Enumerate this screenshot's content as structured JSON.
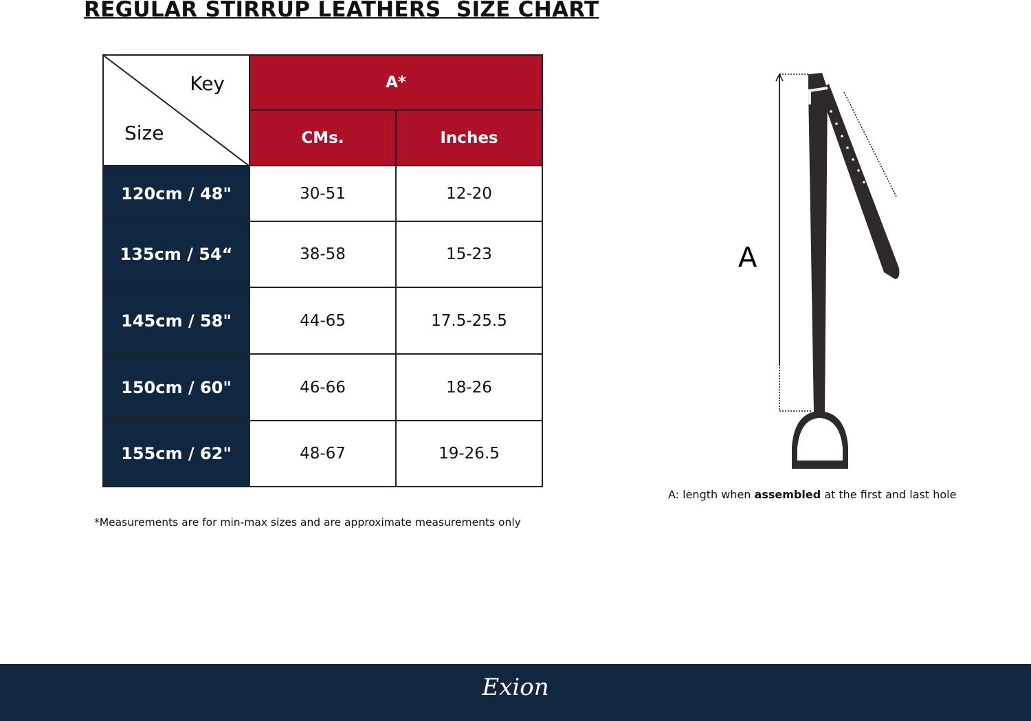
{
  "title": "REGULAR STIRRUP LEATHERS  SIZE CHART",
  "table": {
    "corner_key": "Key",
    "corner_size": "Size",
    "group_header": "A*",
    "columns": [
      "CMs.",
      "Inches"
    ],
    "rows": [
      {
        "size": "120cm / 48\"",
        "cms": "30-51",
        "inches": "12-20"
      },
      {
        "size": "135cm / 54“",
        "cms": "38-58",
        "inches": "15-23"
      },
      {
        "size": "145cm / 58\"",
        "cms": "44-65",
        "inches": "17.5-25.5"
      },
      {
        "size": "150cm / 60\"",
        "cms": "46-66",
        "inches": "18-26"
      },
      {
        "size": "155cm / 62\"",
        "cms": "48-67",
        "inches": "19-26.5"
      }
    ]
  },
  "footnote": "*Measurements are for min-max sizes and are approximate measurements only",
  "diagram": {
    "label": "A",
    "caption_pre": "A: length when ",
    "caption_bold": "assembled",
    "caption_post": " at the first and last hole"
  },
  "footer": {
    "logo": "Exion"
  },
  "colors": {
    "header_red": "#ae1028",
    "size_navy": "#0f2740",
    "footer": "#12263f",
    "leather": "#2f2a2a"
  }
}
